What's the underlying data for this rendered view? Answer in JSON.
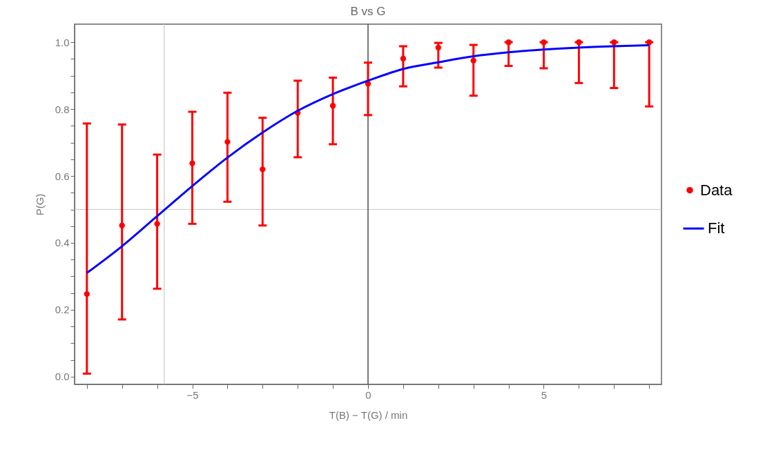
{
  "chart_data": {
    "type": "scatter",
    "title": "B vs G",
    "xlabel": "T(B) − T(G) / min",
    "ylabel": "P(G)",
    "xlim": [
      -8.35,
      8.35
    ],
    "ylim": [
      -0.023,
      1.054
    ],
    "xticks": [
      {
        "value": -8,
        "label": null
      },
      {
        "value": -7,
        "label": null
      },
      {
        "value": -6,
        "label": null
      },
      {
        "value": -5,
        "label": "−5"
      },
      {
        "value": -4,
        "label": null
      },
      {
        "value": -3,
        "label": null
      },
      {
        "value": -2,
        "label": null
      },
      {
        "value": -1,
        "label": null
      },
      0,
      {
        "value": 1,
        "label": null
      },
      {
        "value": 2,
        "label": null
      },
      {
        "value": 3,
        "label": null
      },
      {
        "value": 4,
        "label": null
      },
      5,
      {
        "value": 6,
        "label": null
      },
      {
        "value": 7,
        "label": null
      },
      {
        "value": 8,
        "label": null
      }
    ],
    "yticks": [
      {
        "value": 0,
        "label": "0.0"
      },
      {
        "value": 0.05,
        "label": null
      },
      {
        "value": 0.1,
        "label": null
      },
      {
        "value": 0.15,
        "label": null
      },
      0.2,
      {
        "value": 0.25,
        "label": null
      },
      {
        "value": 0.3,
        "label": null
      },
      {
        "value": 0.35,
        "label": null
      },
      0.4,
      {
        "value": 0.45,
        "label": null
      },
      {
        "value": 0.5,
        "label": null
      },
      {
        "value": 0.55,
        "label": null
      },
      0.6,
      {
        "value": 0.65,
        "label": null
      },
      {
        "value": 0.7,
        "label": null
      },
      {
        "value": 0.75,
        "label": null
      },
      0.8,
      {
        "value": 0.85,
        "label": null
      },
      {
        "value": 0.9,
        "label": null
      },
      {
        "value": 0.95,
        "label": null
      },
      {
        "value": 1,
        "label": "1.0"
      }
    ],
    "x": [
      -8,
      -7,
      -6,
      -5,
      -4,
      -3,
      -2,
      -1,
      0,
      1,
      2,
      3,
      4,
      5,
      6,
      7,
      8
    ],
    "series": [
      {
        "name": "Data",
        "type": "scatter",
        "color": "#ff0000",
        "marker": "circle",
        "values": [
          0.247,
          0.452,
          0.457,
          0.638,
          0.702,
          0.62,
          0.789,
          0.81,
          0.876,
          0.951,
          0.984,
          0.945,
          1.0,
          1.0,
          1.0,
          1.0,
          1.0
        ],
        "errors": [
          [
            0.009,
            0.757
          ],
          [
            0.171,
            0.754
          ],
          [
            0.263,
            0.664
          ],
          [
            0.457,
            0.792
          ],
          [
            0.523,
            0.849
          ],
          [
            0.452,
            0.774
          ],
          [
            0.656,
            0.885
          ],
          [
            0.695,
            0.894
          ],
          [
            0.782,
            0.939
          ],
          [
            0.868,
            0.988
          ],
          [
            0.924,
            0.998
          ],
          [
            0.84,
            0.992
          ],
          [
            0.929,
            1.0
          ],
          [
            0.922,
            1.0
          ],
          [
            0.878,
            1.0
          ],
          [
            0.863,
            1.0
          ],
          [
            0.808,
            1.0
          ]
        ]
      },
      {
        "name": "Fit",
        "type": "line",
        "color": "#0000ff",
        "marker": "none",
        "values": [
          0.31,
          0.39,
          0.48,
          0.57,
          0.655,
          0.73,
          0.795,
          0.845,
          0.885,
          0.92,
          0.94,
          0.958,
          0.97,
          0.978,
          0.984,
          0.988,
          0.991
        ]
      }
    ],
    "ref_lines": [
      {
        "axis": "x",
        "value": -5.8,
        "color": "#c8c8c8"
      },
      {
        "axis": "y",
        "value": 0.5,
        "color": "#c8c8c8"
      },
      {
        "axis": "x",
        "value": 0,
        "color": "#555555"
      }
    ],
    "legend": "right"
  }
}
